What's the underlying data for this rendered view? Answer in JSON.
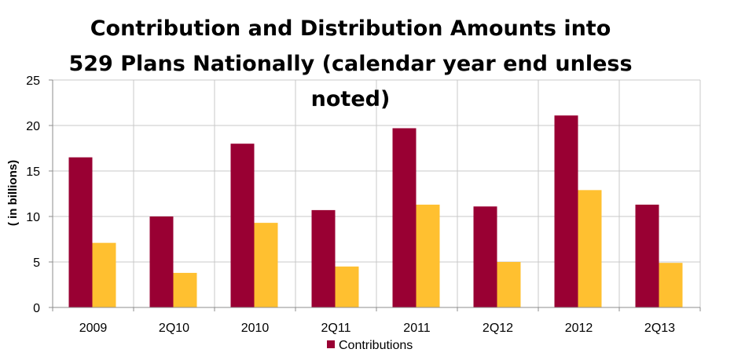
{
  "chart_data": {
    "type": "bar",
    "title_lines": [
      "Contribution and Distribution Amounts into",
      "529 Plans Nationally (calendar year end unless",
      "noted)"
    ],
    "categories": [
      "2009",
      "2Q10",
      "2010",
      "2Q11",
      "2011",
      "2Q12",
      "2012",
      "2Q13"
    ],
    "series": [
      {
        "name": "Contributions",
        "color": "#990033",
        "values": [
          16.5,
          10.0,
          18.0,
          10.7,
          19.7,
          11.1,
          21.1,
          11.3
        ]
      },
      {
        "name": "",
        "color": "#FFC030",
        "values": [
          7.1,
          3.8,
          9.3,
          4.5,
          11.3,
          5.0,
          12.9,
          4.9
        ]
      }
    ],
    "xlabel": "",
    "ylabel": "( in billions)",
    "ylim": [
      0,
      25
    ],
    "yticks": [
      "0",
      "5",
      "10",
      "15",
      "20",
      "25"
    ],
    "grid": true,
    "legend": {
      "position": "bottom",
      "entries": [
        "Contributions"
      ]
    }
  }
}
